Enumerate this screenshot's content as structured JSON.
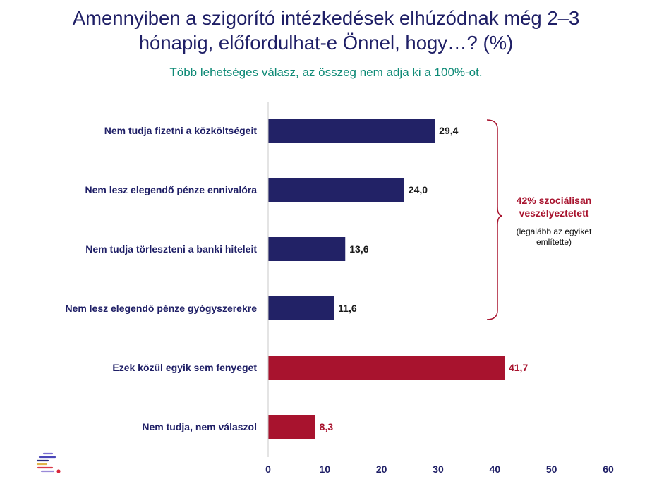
{
  "title_line1": "Amennyiben a szigorító intézkedések elhúzódnak még 2–3",
  "title_line2": "hónapig, előfordulhat-e Önnel, hogy…? (%)",
  "subtitle": "Több lehetséges válasz, az összeg nem adja ki a 100%-ot.",
  "annotation": {
    "headline_line1": "42% szociálisan",
    "headline_line2": "veszélyeztetett",
    "note_line1": "(legalább az egyiket",
    "note_line2": "említette)",
    "color": "#a8132e"
  },
  "chart_data": {
    "type": "bar",
    "orientation": "horizontal",
    "categories": [
      "Nem tudja fizetni a közköltségeit",
      "Nem lesz elegendő pénze ennivalóra",
      "Nem tudja törleszteni a banki hiteleit",
      "Nem lesz elegendő pénze gyógyszerekre",
      "Ezek közül egyik sem fenyeget",
      "Nem tudja, nem válaszol"
    ],
    "values": [
      29.4,
      24.0,
      13.6,
      11.6,
      41.7,
      8.3
    ],
    "value_labels": [
      "29,4",
      "24,0",
      "13,6",
      "11,6",
      "41,7",
      "8,3"
    ],
    "bar_colors": [
      "#222266",
      "#222266",
      "#222266",
      "#222266",
      "#a8132e",
      "#a8132e"
    ],
    "xlim": [
      0,
      60
    ],
    "xticks": [
      0,
      10,
      20,
      30,
      40,
      50,
      60
    ],
    "grid": false,
    "title": "Amennyiben a szigorító intézkedések elhúzódnak még 2–3 hónapig, előfordulhat-e Önnel, hogy…? (%)"
  }
}
